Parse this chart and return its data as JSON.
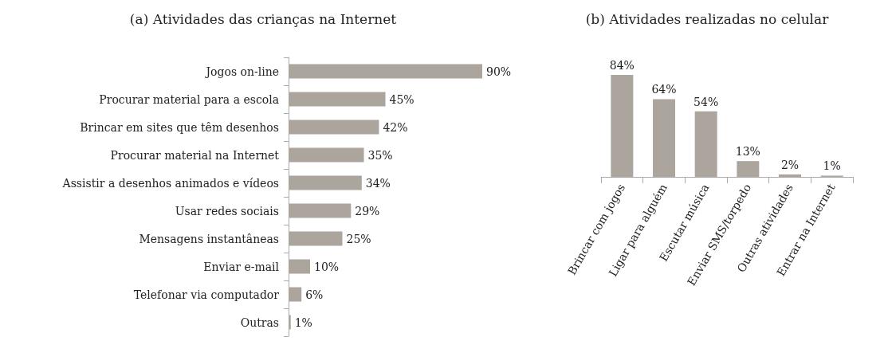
{
  "chart_data": [
    {
      "type": "bar",
      "orientation": "horizontal",
      "title": "(a) Atividades das crianças na Internet",
      "categories": [
        "Jogos on-line",
        "Procurar material para a escola",
        "Brincar em sites que têm desenhos",
        "Procurar material na Internet",
        "Assistir a desenhos animados e vídeos",
        "Usar redes sociais",
        "Mensagens instantâneas",
        "Enviar e-mail",
        "Telefonar via computador",
        "Outras"
      ],
      "values": [
        90,
        45,
        42,
        35,
        34,
        29,
        25,
        10,
        6,
        1
      ],
      "value_labels": [
        "90%",
        "45%",
        "42%",
        "35%",
        "34%",
        "29%",
        "25%",
        "10%",
        "6%",
        "1%"
      ],
      "color": "#aca59e"
    },
    {
      "type": "bar",
      "title": "(b) Atividades realizadas no celular",
      "categories": [
        "Brincar com jogos",
        "Ligar para alguém",
        "Escutar música",
        "Enviar SMS/torpedo",
        "Outras atividades",
        "Entrar na Internet"
      ],
      "values": [
        84,
        64,
        54,
        13,
        2,
        1
      ],
      "value_labels": [
        "84%",
        "64%",
        "54%",
        "13%",
        "2%",
        "1%"
      ],
      "color": "#aca59e"
    }
  ]
}
